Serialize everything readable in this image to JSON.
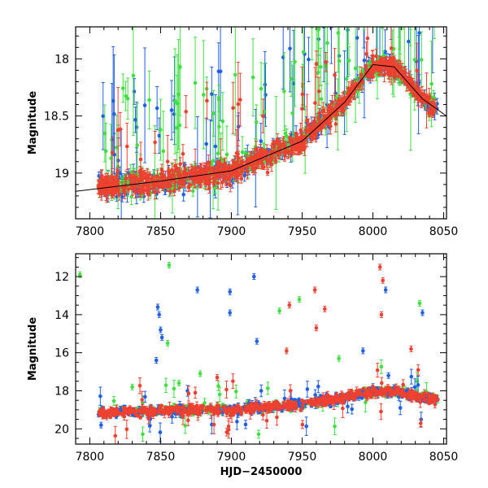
{
  "chart_data": [
    {
      "type": "scatter",
      "panel": "top",
      "title": "",
      "xlabel": "",
      "ylabel": "Magnitude",
      "xlim": [
        7790,
        8052
      ],
      "ylim": [
        19.4,
        17.72
      ],
      "y_inverted": true,
      "x_ticks": [
        7800,
        7850,
        7900,
        7950,
        8000,
        8050
      ],
      "y_ticks": [
        18,
        18.5,
        19
      ],
      "grid": false,
      "legend": "none",
      "series": [
        {
          "color": "#2060e8",
          "trend": [
            [
              7805,
              19.12
            ],
            [
              7850,
              19.07
            ],
            [
              7900,
              18.98
            ],
            [
              7950,
              18.72
            ],
            [
              7980,
              18.38
            ],
            [
              8000,
              18.05
            ],
            [
              8015,
              18.07
            ],
            [
              8035,
              18.35
            ],
            [
              8045,
              18.45
            ]
          ]
        },
        {
          "color": "#40e040",
          "trend": [
            [
              7805,
              19.12
            ],
            [
              7850,
              19.07
            ],
            [
              7900,
              18.98
            ],
            [
              7950,
              18.72
            ],
            [
              7980,
              18.38
            ],
            [
              8000,
              18.05
            ],
            [
              8015,
              18.07
            ],
            [
              8035,
              18.35
            ],
            [
              8045,
              18.45
            ]
          ]
        },
        {
          "color": "#f04030",
          "trend": [
            [
              7805,
              19.12
            ],
            [
              7850,
              19.07
            ],
            [
              7900,
              18.98
            ],
            [
              7950,
              18.72
            ],
            [
              7980,
              18.38
            ],
            [
              8000,
              18.05
            ],
            [
              8015,
              18.07
            ],
            [
              8035,
              18.35
            ],
            [
              8045,
              18.45
            ]
          ]
        }
      ],
      "model_line": [
        [
          7790,
          19.16
        ],
        [
          7850,
          19.07
        ],
        [
          7900,
          18.98
        ],
        [
          7950,
          18.72
        ],
        [
          7980,
          18.38
        ],
        [
          8000,
          18.05
        ],
        [
          8015,
          18.07
        ],
        [
          8035,
          18.35
        ],
        [
          8052,
          18.5
        ]
      ]
    },
    {
      "type": "scatter",
      "panel": "bottom",
      "title": "",
      "xlabel": "HJD−2450000",
      "ylabel": "Magnitude",
      "xlim": [
        7790,
        8052
      ],
      "ylim": [
        20.8,
        10.8
      ],
      "y_inverted": true,
      "x_ticks": [
        7800,
        7850,
        7900,
        7950,
        8000,
        8050
      ],
      "y_ticks": [
        12,
        14,
        16,
        18,
        20
      ],
      "grid": false,
      "legend": "none",
      "series": [
        {
          "color": "#2060e8",
          "outliers": [
            [
              7848,
              13.6
            ],
            [
              7849,
              14.0
            ],
            [
              7850,
              14.8
            ],
            [
              7851,
              15.2
            ],
            [
              7847,
              16.4
            ],
            [
              7876,
              12.7
            ],
            [
              7899,
              12.8
            ],
            [
              7899,
              13.9
            ],
            [
              7916,
              12.0
            ],
            [
              7918,
              15.4
            ],
            [
              7993,
              15.9
            ],
            [
              8009,
              12.7
            ],
            [
              8035,
              13.9
            ],
            [
              8011,
              17.2
            ],
            [
              7808,
              19.8
            ]
          ]
        },
        {
          "color": "#40e040",
          "outliers": [
            [
              7793,
              11.9
            ],
            [
              7856,
              11.4
            ],
            [
              7855,
              15.5
            ],
            [
              7878,
              17.1
            ],
            [
              7934,
              13.8
            ],
            [
              7948,
              13.2
            ],
            [
              7976,
              16.3
            ],
            [
              8033,
              13.4
            ],
            [
              7830,
              17.8
            ],
            [
              7863,
              17.6
            ]
          ]
        },
        {
          "color": "#f04030",
          "outliers": [
            [
              7941,
              13.5
            ],
            [
              7939,
              15.9
            ],
            [
              7959,
              12.7
            ],
            [
              7966,
              13.7
            ],
            [
              7960,
              14.7
            ],
            [
              8005,
              11.5
            ],
            [
              8007,
              12.2
            ],
            [
              8006,
              14.0
            ],
            [
              8027,
              15.8
            ],
            [
              7890,
              17.3
            ]
          ]
        }
      ],
      "trend": [
        [
          7805,
          19.15
        ],
        [
          7850,
          19.05
        ],
        [
          7900,
          18.98
        ],
        [
          7950,
          18.72
        ],
        [
          7980,
          18.38
        ],
        [
          8000,
          18.05
        ],
        [
          8015,
          18.07
        ],
        [
          8035,
          18.35
        ],
        [
          8045,
          18.45
        ]
      ]
    }
  ]
}
